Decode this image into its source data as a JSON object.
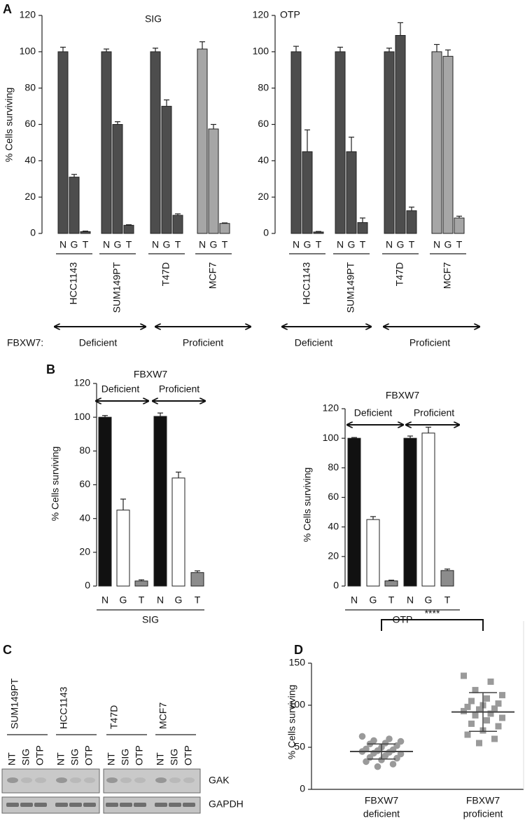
{
  "panel_labels": [
    "A",
    "B",
    "C",
    "D"
  ],
  "chart_data": [
    {
      "type": "bar",
      "title": "SIG",
      "ylabel": "% Cells surviving",
      "categories": [
        "N",
        "G",
        "T",
        "N",
        "G",
        "T",
        "N",
        "G",
        "T",
        "N",
        "G",
        "T"
      ],
      "values": [
        100,
        31,
        1,
        100,
        60,
        4.5,
        100,
        70,
        10,
        101.5,
        57.5,
        5.5
      ],
      "errors": [
        2.5,
        1.5,
        0.3,
        1.5,
        1.5,
        0.3,
        2,
        3.5,
        0.8,
        4,
        2.5,
        0.3
      ],
      "groups": [
        "HCC1143",
        "SUM149PT",
        "T47D",
        "MCF7"
      ],
      "group_colors": [
        "#4d4d4d",
        "#4d4d4d",
        "#4d4d4d",
        "#a6a6a6"
      ],
      "ylim": [
        0,
        120
      ],
      "yticks": [
        0,
        20,
        40,
        60,
        80,
        100,
        120
      ],
      "spans_label": "FBXW7:",
      "spans": [
        "Deficient",
        "Proficient"
      ]
    },
    {
      "type": "bar",
      "title": "OTP",
      "categories": [
        "N",
        "G",
        "T",
        "N",
        "G",
        "T",
        "N",
        "G",
        "T",
        "N",
        "G",
        "T"
      ],
      "values": [
        100,
        45,
        0.8,
        100,
        45,
        6,
        100,
        109,
        12.5,
        100,
        97.5,
        8.5
      ],
      "errors": [
        3,
        12,
        0.3,
        2.5,
        8,
        2.5,
        2,
        7,
        2,
        4,
        3.5,
        1
      ],
      "groups": [
        "HCC1143",
        "SUM149PT",
        "T47D",
        "MCF7"
      ],
      "group_colors": [
        "#4d4d4d",
        "#4d4d4d",
        "#4d4d4d",
        "#a6a6a6"
      ],
      "ylim": [
        0,
        120
      ],
      "yticks": [
        0,
        20,
        40,
        60,
        80,
        100,
        120
      ],
      "spans": [
        "Deficient",
        "Proficient"
      ]
    },
    {
      "type": "bar",
      "title": "FBXW7",
      "xlabel": "SIG",
      "ylabel": "% Cells surviving",
      "categories": [
        "N",
        "G",
        "T",
        "N",
        "G",
        "T"
      ],
      "values": [
        100,
        45,
        3,
        100.5,
        64,
        8
      ],
      "errors": [
        1,
        6.5,
        0.7,
        2,
        3.5,
        1
      ],
      "colors": [
        "#111111",
        "#ffffff",
        "#8c8c8c",
        "#111111",
        "#ffffff",
        "#8c8c8c"
      ],
      "ylim": [
        0,
        120
      ],
      "yticks": [
        0,
        20,
        40,
        60,
        80,
        100,
        120
      ],
      "spans": [
        "Deficient",
        "Proficient"
      ]
    },
    {
      "type": "bar",
      "title": "FBXW7",
      "xlabel": "OTP",
      "ylabel": "% Cells surviving",
      "categories": [
        "N",
        "G",
        "T",
        "N",
        "G",
        "T"
      ],
      "values": [
        100,
        45,
        3.5,
        100,
        103.5,
        10.5
      ],
      "errors": [
        0.5,
        2,
        0.5,
        1.5,
        4,
        1
      ],
      "colors": [
        "#111111",
        "#ffffff",
        "#8c8c8c",
        "#111111",
        "#ffffff",
        "#8c8c8c"
      ],
      "ylim": [
        0,
        120
      ],
      "yticks": [
        0,
        20,
        40,
        60,
        80,
        100,
        120
      ],
      "spans": [
        "Deficient",
        "Proficient"
      ]
    },
    {
      "type": "scatter",
      "ylabel": "% Cells surviving",
      "categories": [
        [
          "FBXW7",
          "deficient"
        ],
        [
          "FBXW7",
          "proficient"
        ]
      ],
      "groups": [
        {
          "values": [
            63,
            60,
            58,
            57,
            55,
            54,
            52,
            50,
            48,
            47,
            46,
            45,
            44,
            43,
            42,
            40,
            38,
            37,
            35,
            33,
            30,
            27
          ],
          "marker": "circle"
        },
        {
          "values": [
            135,
            128,
            118,
            112,
            108,
            105,
            102,
            100,
            98,
            96,
            95,
            93,
            90,
            88,
            85,
            82,
            78,
            75,
            70,
            65,
            60,
            55
          ],
          "marker": "square"
        }
      ],
      "color": "#9a9a9a",
      "mean": [
        45,
        92
      ],
      "sd": [
        9,
        23
      ],
      "annotation": "****",
      "ylim": [
        0,
        150
      ],
      "yticks": [
        0,
        50,
        100,
        150
      ]
    }
  ],
  "blot": {
    "cell_lines": [
      "SUM149PT",
      "HCC1143",
      "T47D",
      "MCF7"
    ],
    "lanes": [
      [
        "NT",
        "SIG",
        "OTP"
      ],
      [
        "NT",
        "SIG",
        "OTP"
      ],
      [
        "NT",
        "SIG",
        "OTP"
      ],
      [
        "NT",
        "SIG",
        "OTP"
      ]
    ],
    "bands": [
      "GAK",
      "GAPDH"
    ]
  }
}
